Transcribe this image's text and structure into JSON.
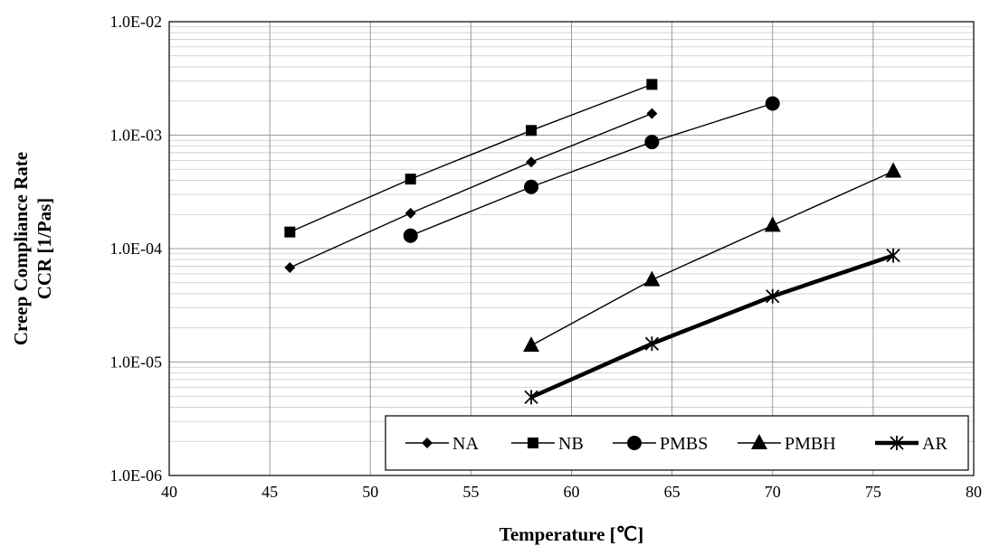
{
  "chart_data": {
    "type": "line",
    "title": "",
    "xlabel": "Temperature [℃]",
    "ylabel_lines": [
      "Creep Compliance Rate",
      "CCR [1/Pas]"
    ],
    "xlim": [
      40,
      80
    ],
    "ylim": [
      1e-06,
      0.01
    ],
    "y_scale": "log",
    "grid": true,
    "legend_position": "bottom-right",
    "x_ticks": [
      "40",
      "45",
      "50",
      "55",
      "60",
      "65",
      "70",
      "75",
      "80"
    ],
    "y_ticks": [
      "1.0E-06",
      "1.0E-05",
      "1.0E-04",
      "1.0E-03",
      "1.0E-02"
    ],
    "series": [
      {
        "name": "NA",
        "marker": "diamond",
        "line_width": "thin",
        "x": [
          46,
          52,
          58,
          64
        ],
        "y": [
          6.8e-05,
          0.000205,
          0.00058,
          0.00155
        ]
      },
      {
        "name": "NB",
        "marker": "square",
        "line_width": "thin",
        "x": [
          46,
          52,
          58,
          64
        ],
        "y": [
          0.00014,
          0.00041,
          0.0011,
          0.0028
        ]
      },
      {
        "name": "PMBS",
        "marker": "circle",
        "line_width": "thin",
        "x": [
          52,
          58,
          64,
          70
        ],
        "y": [
          0.00013,
          0.00035,
          0.00087,
          0.0019
        ]
      },
      {
        "name": "PMBH",
        "marker": "triangle",
        "line_width": "thin",
        "x": [
          58,
          64,
          70,
          76
        ],
        "y": [
          1.4e-05,
          5.3e-05,
          0.00016,
          0.00048
        ]
      },
      {
        "name": "AR",
        "marker": "asterisk",
        "line_width": "thick",
        "x": [
          58,
          64,
          70,
          76
        ],
        "y": [
          4.9e-06,
          1.45e-05,
          3.8e-05,
          8.7e-05
        ]
      }
    ]
  }
}
